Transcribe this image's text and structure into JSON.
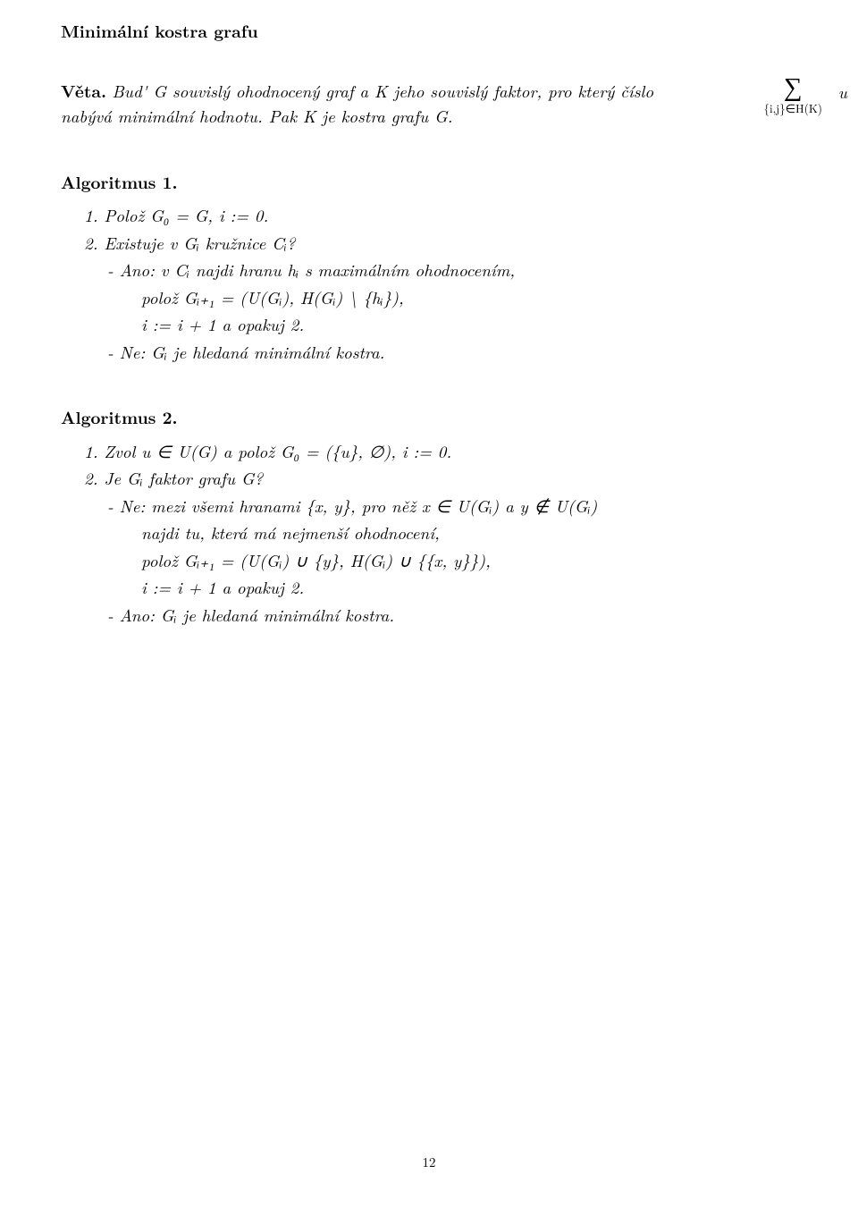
{
  "title": "Minimální kostra grafu",
  "theorem": {
    "label": "Věta.",
    "text_1": "Bud' G souvislý ohodnocený graf a K jeho souvislý faktor, pro který číslo",
    "text_2": "nabývá minimální hodnotu. Pak K je kostra grafu G.",
    "sum_sub": "{i,j}∈H(K)",
    "sum_var": "u"
  },
  "algo1": {
    "head": "Algoritmus 1.",
    "s1": "1. Polož G₀ = G, i := 0.",
    "s2": "2. Existuje v Gᵢ kružnice Cᵢ?",
    "s3": "- Ano: v Cᵢ najdi hranu hᵢ s maximálním ohodnocením,",
    "s4": "polož Gᵢ₊₁ = (U(Gᵢ), H(Gᵢ) \\ {hᵢ}),",
    "s5": "i := i + 1 a opakuj 2.",
    "s6": "- Ne: Gᵢ je hledaná minimální kostra."
  },
  "algo2": {
    "head": "Algoritmus 2.",
    "s1": "1. Zvol u ∈ U(G) a polož G₀ = ({u}, ∅), i := 0.",
    "s2": "2. Je Gᵢ faktor grafu G?",
    "s3": "- Ne: mezi všemi hranami {x, y}, pro něž x ∈ U(Gᵢ) a y ∉ U(Gᵢ)",
    "s4": "najdi tu, která má nejmenší ohodnocení,",
    "s5": "polož Gᵢ₊₁ = (U(Gᵢ) ∪ {y}, H(Gᵢ) ∪ {{x, y}}),",
    "s6": "i := i + 1 a opakuj 2.",
    "s7": "- Ano: Gᵢ je hledaná minimální kostra."
  },
  "page_number": "12"
}
